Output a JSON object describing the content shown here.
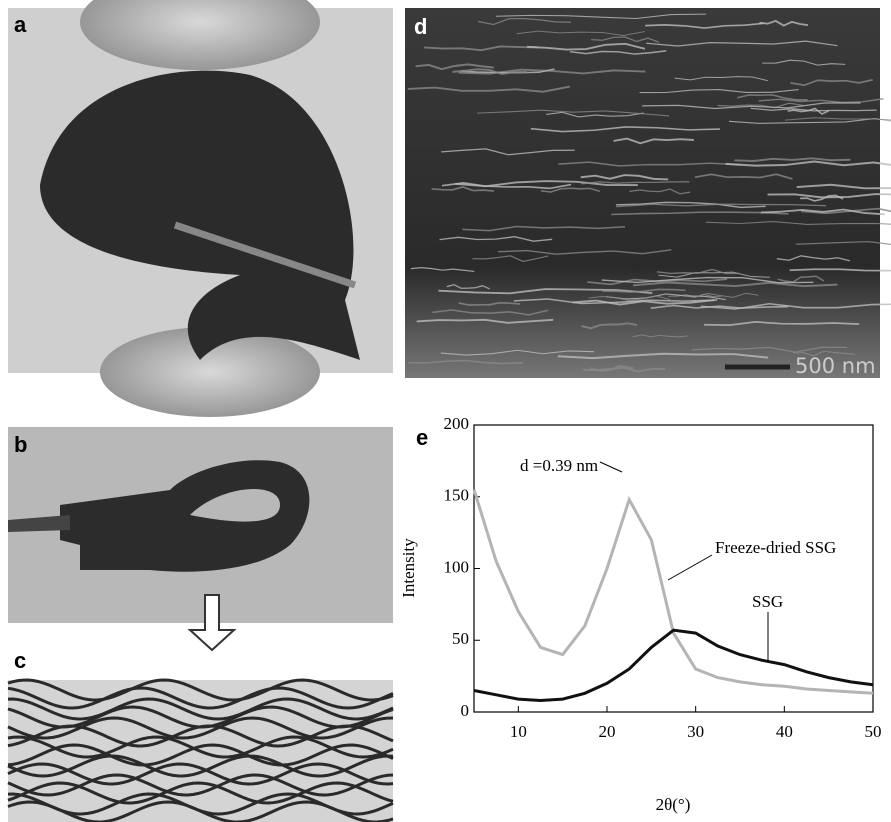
{
  "panel_labels": [
    "a",
    "b",
    "c",
    "d",
    "e"
  ],
  "scale_bar": "500 nm",
  "chart_data": {
    "type": "line",
    "xlabel": "2θ(°)",
    "ylabel": "Intensity",
    "x": [
      5,
      7.5,
      10,
      12.5,
      15,
      17.5,
      20,
      22.5,
      25,
      27.5,
      30,
      32.5,
      35,
      37.5,
      40,
      42.5,
      45,
      47.5,
      50
    ],
    "series": [
      {
        "name": "Freeze-dried SSG",
        "color": "#b4b4b4",
        "values": [
          155,
          105,
          70,
          45,
          40,
          60,
          100,
          148,
          120,
          55,
          30,
          24,
          21,
          19,
          18,
          16,
          15,
          14,
          13
        ]
      },
      {
        "name": "SSG",
        "color": "#111111",
        "values": [
          15,
          12,
          9,
          8,
          9,
          13,
          20,
          30,
          45,
          57,
          55,
          46,
          40,
          36,
          33,
          28,
          24,
          21,
          19
        ]
      }
    ],
    "annotation": "d =0.39 nm",
    "xlim": [
      5,
      50
    ],
    "xticks": [
      10,
      20,
      30,
      40,
      50
    ],
    "ylim": [
      0,
      200
    ],
    "yticks": [
      0,
      50,
      100,
      150,
      200
    ]
  }
}
